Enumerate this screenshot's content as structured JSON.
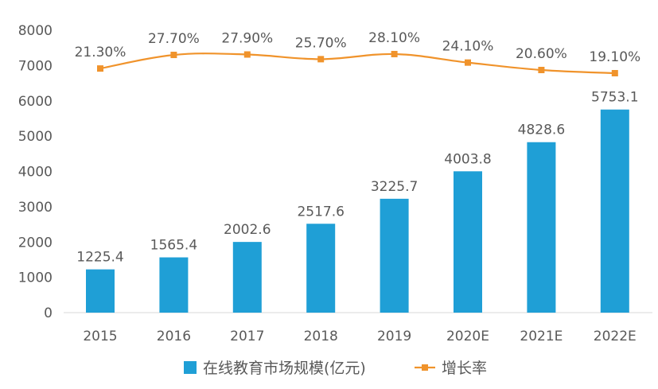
{
  "chart_data": {
    "type": "bar+line",
    "categories": [
      "2015",
      "2016",
      "2017",
      "2018",
      "2019",
      "2020E",
      "2021E",
      "2022E"
    ],
    "series": [
      {
        "name": "在线教育市场规模(亿元)",
        "type": "bar",
        "color": "#1f9fd6",
        "values": [
          1225.4,
          1565.4,
          2002.6,
          2517.6,
          3225.7,
          4003.8,
          4828.6,
          5753.1
        ],
        "labels": [
          "1225.4",
          "1565.4",
          "2002.6",
          "2517.6",
          "3225.7",
          "4003.8",
          "4828.6",
          "5753.1"
        ]
      },
      {
        "name": "增长率",
        "type": "line",
        "color": "#f0932b",
        "values": [
          21.3,
          27.7,
          27.9,
          25.7,
          28.1,
          24.1,
          20.6,
          19.1
        ],
        "labels": [
          "21.30%",
          "27.70%",
          "27.90%",
          "25.70%",
          "28.10%",
          "24.10%",
          "20.60%",
          "19.10%"
        ]
      }
    ],
    "yticks": [
      "0",
      "1000",
      "2000",
      "3000",
      "4000",
      "5000",
      "6000",
      "7000",
      "8000"
    ],
    "ylim": [
      0,
      8000
    ],
    "grid": false,
    "legend": "bottom"
  }
}
